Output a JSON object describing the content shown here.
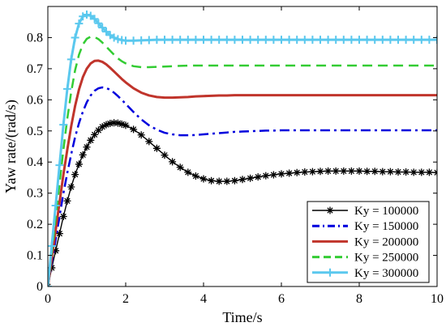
{
  "chart_data": {
    "type": "line",
    "xlabel": "Time/s",
    "ylabel": "Yaw rate/(rad/s)",
    "xlim": [
      0,
      10
    ],
    "ylim": [
      0,
      0.9
    ],
    "xticks": [
      "0",
      "2",
      "4",
      "6",
      "8",
      "10"
    ],
    "yticks": [
      "0",
      "0.1",
      "0.2",
      "0.3",
      "0.4",
      "0.5",
      "0.6",
      "0.7",
      "0.8"
    ],
    "grid": false,
    "legend_position": "bottom-right",
    "x": [
      0,
      0.1,
      0.2,
      0.3,
      0.4,
      0.5,
      0.6,
      0.7,
      0.8,
      0.9,
      1.0,
      1.1,
      1.2,
      1.3,
      1.4,
      1.5,
      1.6,
      1.7,
      1.8,
      1.9,
      2.0,
      2.2,
      2.4,
      2.6,
      2.8,
      3.0,
      3.2,
      3.4,
      3.6,
      3.8,
      4.0,
      4.2,
      4.4,
      4.6,
      4.8,
      5.0,
      5.2,
      5.4,
      5.6,
      5.8,
      6.0,
      6.2,
      6.4,
      6.6,
      6.8,
      7.0,
      7.2,
      7.4,
      7.6,
      7.8,
      8.0,
      8.2,
      8.4,
      8.6,
      8.8,
      9.0,
      9.2,
      9.4,
      9.6,
      9.8,
      10.0
    ],
    "series": [
      {
        "name": "Ky = 100000",
        "color": "#000000",
        "style": "solid",
        "marker": "asterisk",
        "values": [
          0,
          0.06,
          0.115,
          0.17,
          0.225,
          0.275,
          0.32,
          0.36,
          0.393,
          0.423,
          0.448,
          0.47,
          0.488,
          0.502,
          0.513,
          0.52,
          0.524,
          0.526,
          0.525,
          0.522,
          0.518,
          0.505,
          0.487,
          0.466,
          0.444,
          0.422,
          0.401,
          0.383,
          0.367,
          0.355,
          0.346,
          0.34,
          0.338,
          0.338,
          0.34,
          0.344,
          0.348,
          0.352,
          0.356,
          0.359,
          0.362,
          0.364,
          0.366,
          0.368,
          0.369,
          0.37,
          0.371,
          0.371,
          0.371,
          0.371,
          0.371,
          0.37,
          0.37,
          0.369,
          0.369,
          0.368,
          0.368,
          0.367,
          0.367,
          0.367,
          0.366
        ]
      },
      {
        "name": "Ky = 150000",
        "color": "#0000dd",
        "style": "dashdot",
        "marker": "none",
        "values": [
          0,
          0.075,
          0.15,
          0.225,
          0.3,
          0.365,
          0.425,
          0.48,
          0.525,
          0.562,
          0.592,
          0.614,
          0.629,
          0.637,
          0.64,
          0.638,
          0.632,
          0.623,
          0.612,
          0.6,
          0.587,
          0.561,
          0.537,
          0.518,
          0.504,
          0.494,
          0.489,
          0.486,
          0.486,
          0.487,
          0.489,
          0.491,
          0.493,
          0.495,
          0.497,
          0.498,
          0.499,
          0.5,
          0.501,
          0.501,
          0.502,
          0.502,
          0.502,
          0.502,
          0.502,
          0.502,
          0.502,
          0.502,
          0.502,
          0.502,
          0.502,
          0.502,
          0.502,
          0.502,
          0.502,
          0.502,
          0.502,
          0.502,
          0.502,
          0.502,
          0.502
        ]
      },
      {
        "name": "Ky = 200000",
        "color": "#c0342b",
        "style": "solid",
        "marker": "none",
        "values": [
          0,
          0.09,
          0.18,
          0.27,
          0.36,
          0.44,
          0.515,
          0.58,
          0.633,
          0.673,
          0.7,
          0.717,
          0.725,
          0.726,
          0.722,
          0.714,
          0.703,
          0.691,
          0.679,
          0.667,
          0.656,
          0.637,
          0.623,
          0.614,
          0.609,
          0.607,
          0.607,
          0.608,
          0.609,
          0.611,
          0.612,
          0.613,
          0.614,
          0.614,
          0.615,
          0.615,
          0.615,
          0.615,
          0.615,
          0.615,
          0.615,
          0.615,
          0.615,
          0.615,
          0.615,
          0.615,
          0.615,
          0.615,
          0.615,
          0.615,
          0.615,
          0.615,
          0.615,
          0.615,
          0.615,
          0.615,
          0.615,
          0.615,
          0.615,
          0.615,
          0.615
        ]
      },
      {
        "name": "Ky = 250000",
        "color": "#33cc33",
        "style": "dashed",
        "marker": "none",
        "values": [
          0,
          0.11,
          0.22,
          0.33,
          0.44,
          0.54,
          0.625,
          0.695,
          0.745,
          0.778,
          0.796,
          0.803,
          0.802,
          0.795,
          0.784,
          0.771,
          0.758,
          0.745,
          0.733,
          0.724,
          0.717,
          0.708,
          0.705,
          0.705,
          0.706,
          0.707,
          0.708,
          0.709,
          0.71,
          0.71,
          0.71,
          0.71,
          0.71,
          0.71,
          0.71,
          0.71,
          0.71,
          0.71,
          0.71,
          0.71,
          0.71,
          0.71,
          0.71,
          0.71,
          0.71,
          0.71,
          0.71,
          0.71,
          0.71,
          0.71,
          0.71,
          0.71,
          0.71,
          0.71,
          0.71,
          0.71,
          0.71,
          0.71,
          0.71,
          0.71,
          0.71
        ]
      },
      {
        "name": "Ky = 300000",
        "color": "#5ac8ee",
        "style": "solid",
        "marker": "plus",
        "values": [
          0,
          0.13,
          0.26,
          0.39,
          0.52,
          0.635,
          0.73,
          0.8,
          0.845,
          0.868,
          0.874,
          0.87,
          0.86,
          0.846,
          0.832,
          0.819,
          0.808,
          0.8,
          0.795,
          0.792,
          0.79,
          0.79,
          0.791,
          0.792,
          0.793,
          0.793,
          0.793,
          0.793,
          0.793,
          0.793,
          0.793,
          0.793,
          0.793,
          0.793,
          0.793,
          0.793,
          0.793,
          0.793,
          0.793,
          0.793,
          0.793,
          0.793,
          0.793,
          0.793,
          0.793,
          0.793,
          0.793,
          0.793,
          0.793,
          0.793,
          0.793,
          0.793,
          0.793,
          0.793,
          0.793,
          0.793,
          0.793,
          0.793,
          0.793,
          0.793,
          0.793
        ]
      }
    ]
  }
}
